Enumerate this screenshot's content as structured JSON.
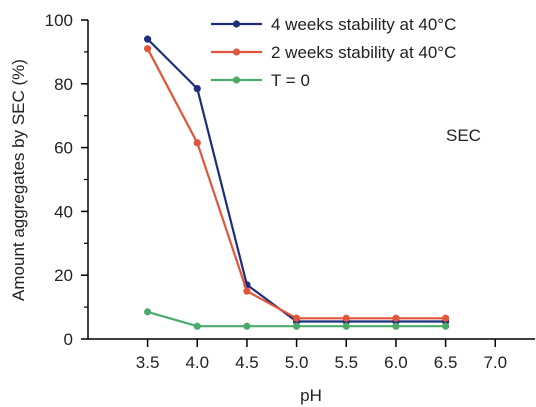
{
  "chart_data": {
    "type": "line",
    "title": "",
    "xlabel": "pH",
    "ylabel": "Amount aggregates by SEC (%)",
    "xlim": [
      2.9,
      7.4
    ],
    "ylim": [
      0,
      100
    ],
    "x_ticks": [
      "3.5",
      "4.0",
      "4.5",
      "5.0",
      "5.5",
      "6.0",
      "6.5",
      "7.0"
    ],
    "y_ticks": [
      "0",
      "20",
      "40",
      "60",
      "80",
      "100"
    ],
    "annotation": "SEC",
    "legend_position": "top-right",
    "grid": false,
    "series": [
      {
        "name": "4 weeks stability at 40°C",
        "color": "#1f2e7a",
        "x": [
          3.5,
          4.0,
          4.5,
          5.0,
          5.5,
          6.0,
          6.5
        ],
        "y": [
          94,
          78.5,
          17,
          5.5,
          5.5,
          5.5,
          5.5
        ]
      },
      {
        "name": "2 weeks stability at 40°C",
        "color": "#e2553a",
        "x": [
          3.5,
          4.0,
          4.5,
          5.0,
          5.5,
          6.0,
          6.5
        ],
        "y": [
          91,
          61.5,
          15,
          6.5,
          6.5,
          6.5,
          6.5
        ]
      },
      {
        "name": "T = 0",
        "color": "#4cab6a",
        "x": [
          3.5,
          4.0,
          4.5,
          5.0,
          5.5,
          6.0,
          6.5
        ],
        "y": [
          8.5,
          4,
          4,
          4,
          4,
          4,
          4
        ]
      }
    ]
  }
}
